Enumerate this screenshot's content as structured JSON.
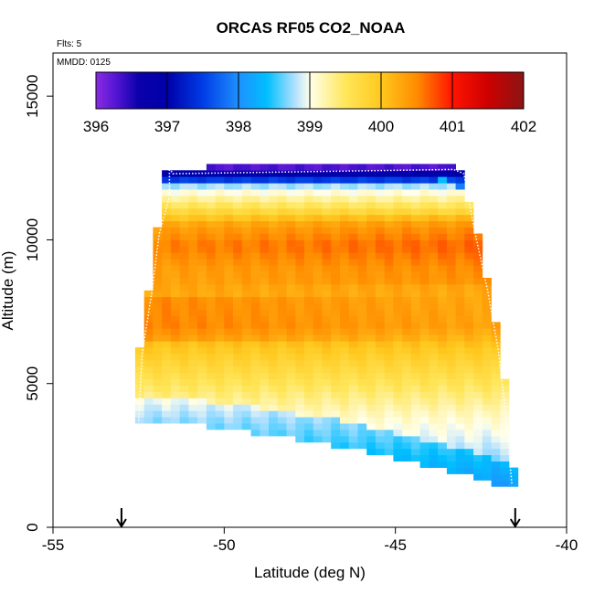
{
  "chart_data": {
    "type": "heatmap",
    "title": "ORCAS RF05 CO2_NOAA",
    "xlabel": "Latitude (deg N)",
    "ylabel": "Altitude (m)",
    "xlim": [
      -55,
      -40
    ],
    "ylim": [
      0,
      16500
    ],
    "xticks": [
      "-55",
      "-50",
      "-45",
      "-40"
    ],
    "xtick_values": [
      -55,
      -50,
      -45,
      -40
    ],
    "yticks": [
      "0",
      "5000",
      "10000",
      "15000"
    ],
    "ytick_values": [
      0,
      5000,
      10000,
      15000
    ],
    "annotations": {
      "flights": "Flts: 5",
      "mmdd": "MMDD: 0125"
    },
    "colorbar": {
      "ticks": [
        "396",
        "397",
        "398",
        "399",
        "400",
        "401",
        "402"
      ],
      "tick_values": [
        396,
        397,
        398,
        399,
        400,
        401,
        402
      ],
      "range": [
        396,
        402
      ]
    },
    "markers": [
      {
        "name": "start",
        "latitude": -53.0
      },
      {
        "name": "end",
        "latitude": -41.5
      }
    ],
    "curtain_bounds": {
      "top_edge": [
        [
          -51.7,
          12500
        ],
        [
          -43.4,
          12700
        ],
        [
          -43.1,
          12400
        ]
      ],
      "left_edge": [
        [
          -51.7,
          12500
        ],
        [
          -51.7,
          11500
        ],
        [
          -52.0,
          10200
        ],
        [
          -52.2,
          8300
        ],
        [
          -52.5,
          6000
        ],
        [
          -52.6,
          3700
        ]
      ],
      "right_edge": [
        [
          -43.1,
          12400
        ],
        [
          -42.6,
          10200
        ],
        [
          -42.2,
          8000
        ],
        [
          -41.9,
          6000
        ],
        [
          -41.7,
          4000
        ],
        [
          -41.5,
          1300
        ]
      ],
      "bottom_edge": [
        [
          -52.6,
          3700
        ],
        [
          -50,
          3450
        ],
        [
          -47,
          2900
        ],
        [
          -45,
          2400
        ],
        [
          -43,
          1800
        ],
        [
          -41.5,
          1300
        ]
      ]
    },
    "profile": [
      {
        "altitude": 12500,
        "co2": 397.2
      },
      {
        "altitude": 12200,
        "co2": 398.2
      },
      {
        "altitude": 11800,
        "co2": 398.9
      },
      {
        "altitude": 11200,
        "co2": 399.5
      },
      {
        "altitude": 10500,
        "co2": 400.3
      },
      {
        "altitude": 9800,
        "co2": 400.55
      },
      {
        "altitude": 9000,
        "co2": 400.35
      },
      {
        "altitude": 8000,
        "co2": 400.25
      },
      {
        "altitude": 7000,
        "co2": 400.3
      },
      {
        "altitude": 6000,
        "co2": 399.9
      },
      {
        "altitude": 5200,
        "co2": 399.6
      },
      {
        "altitude": 4500,
        "co2": 399.35
      },
      {
        "altitude": 3800,
        "co2": 399.1
      },
      {
        "altitude": 3000,
        "co2": 398.9
      },
      {
        "altitude": 2300,
        "co2": 398.7
      },
      {
        "altitude": 1600,
        "co2": 398.5
      },
      {
        "altitude": 1200,
        "co2": 398.3
      }
    ]
  }
}
